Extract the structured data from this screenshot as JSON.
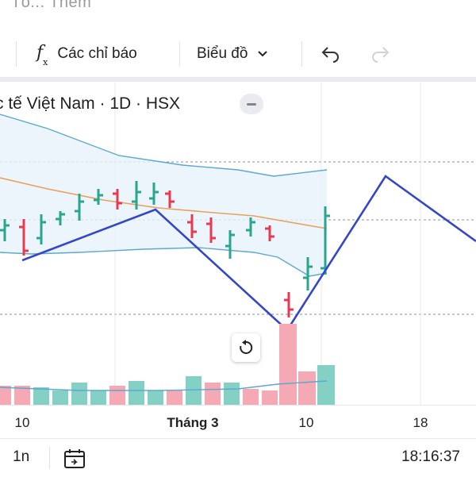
{
  "top_cut_text": "Tổ... Thêm",
  "toolbar": {
    "indicators_label": "Các chỉ báo",
    "chart_type_label": "Biểu đồ",
    "fx_icon": "fx-icon",
    "undo_icon": "undo-icon",
    "redo_icon": "redo-icon"
  },
  "legend": {
    "symbol_title": "c tế Việt Nam · 1D · HSX"
  },
  "x_axis": {
    "labels": [
      "10",
      "Tháng 3",
      "10",
      "18"
    ]
  },
  "bottom_bar": {
    "interval": "1n",
    "time": "18:16:37"
  },
  "colors": {
    "up": "#2aa58e",
    "down": "#e53b52",
    "drawing": "#3447c8",
    "ma": "#e8a15a",
    "band": "#5ba8d0",
    "volume_up": "#85d0c4",
    "volume_down": "#f5a9b4"
  }
}
